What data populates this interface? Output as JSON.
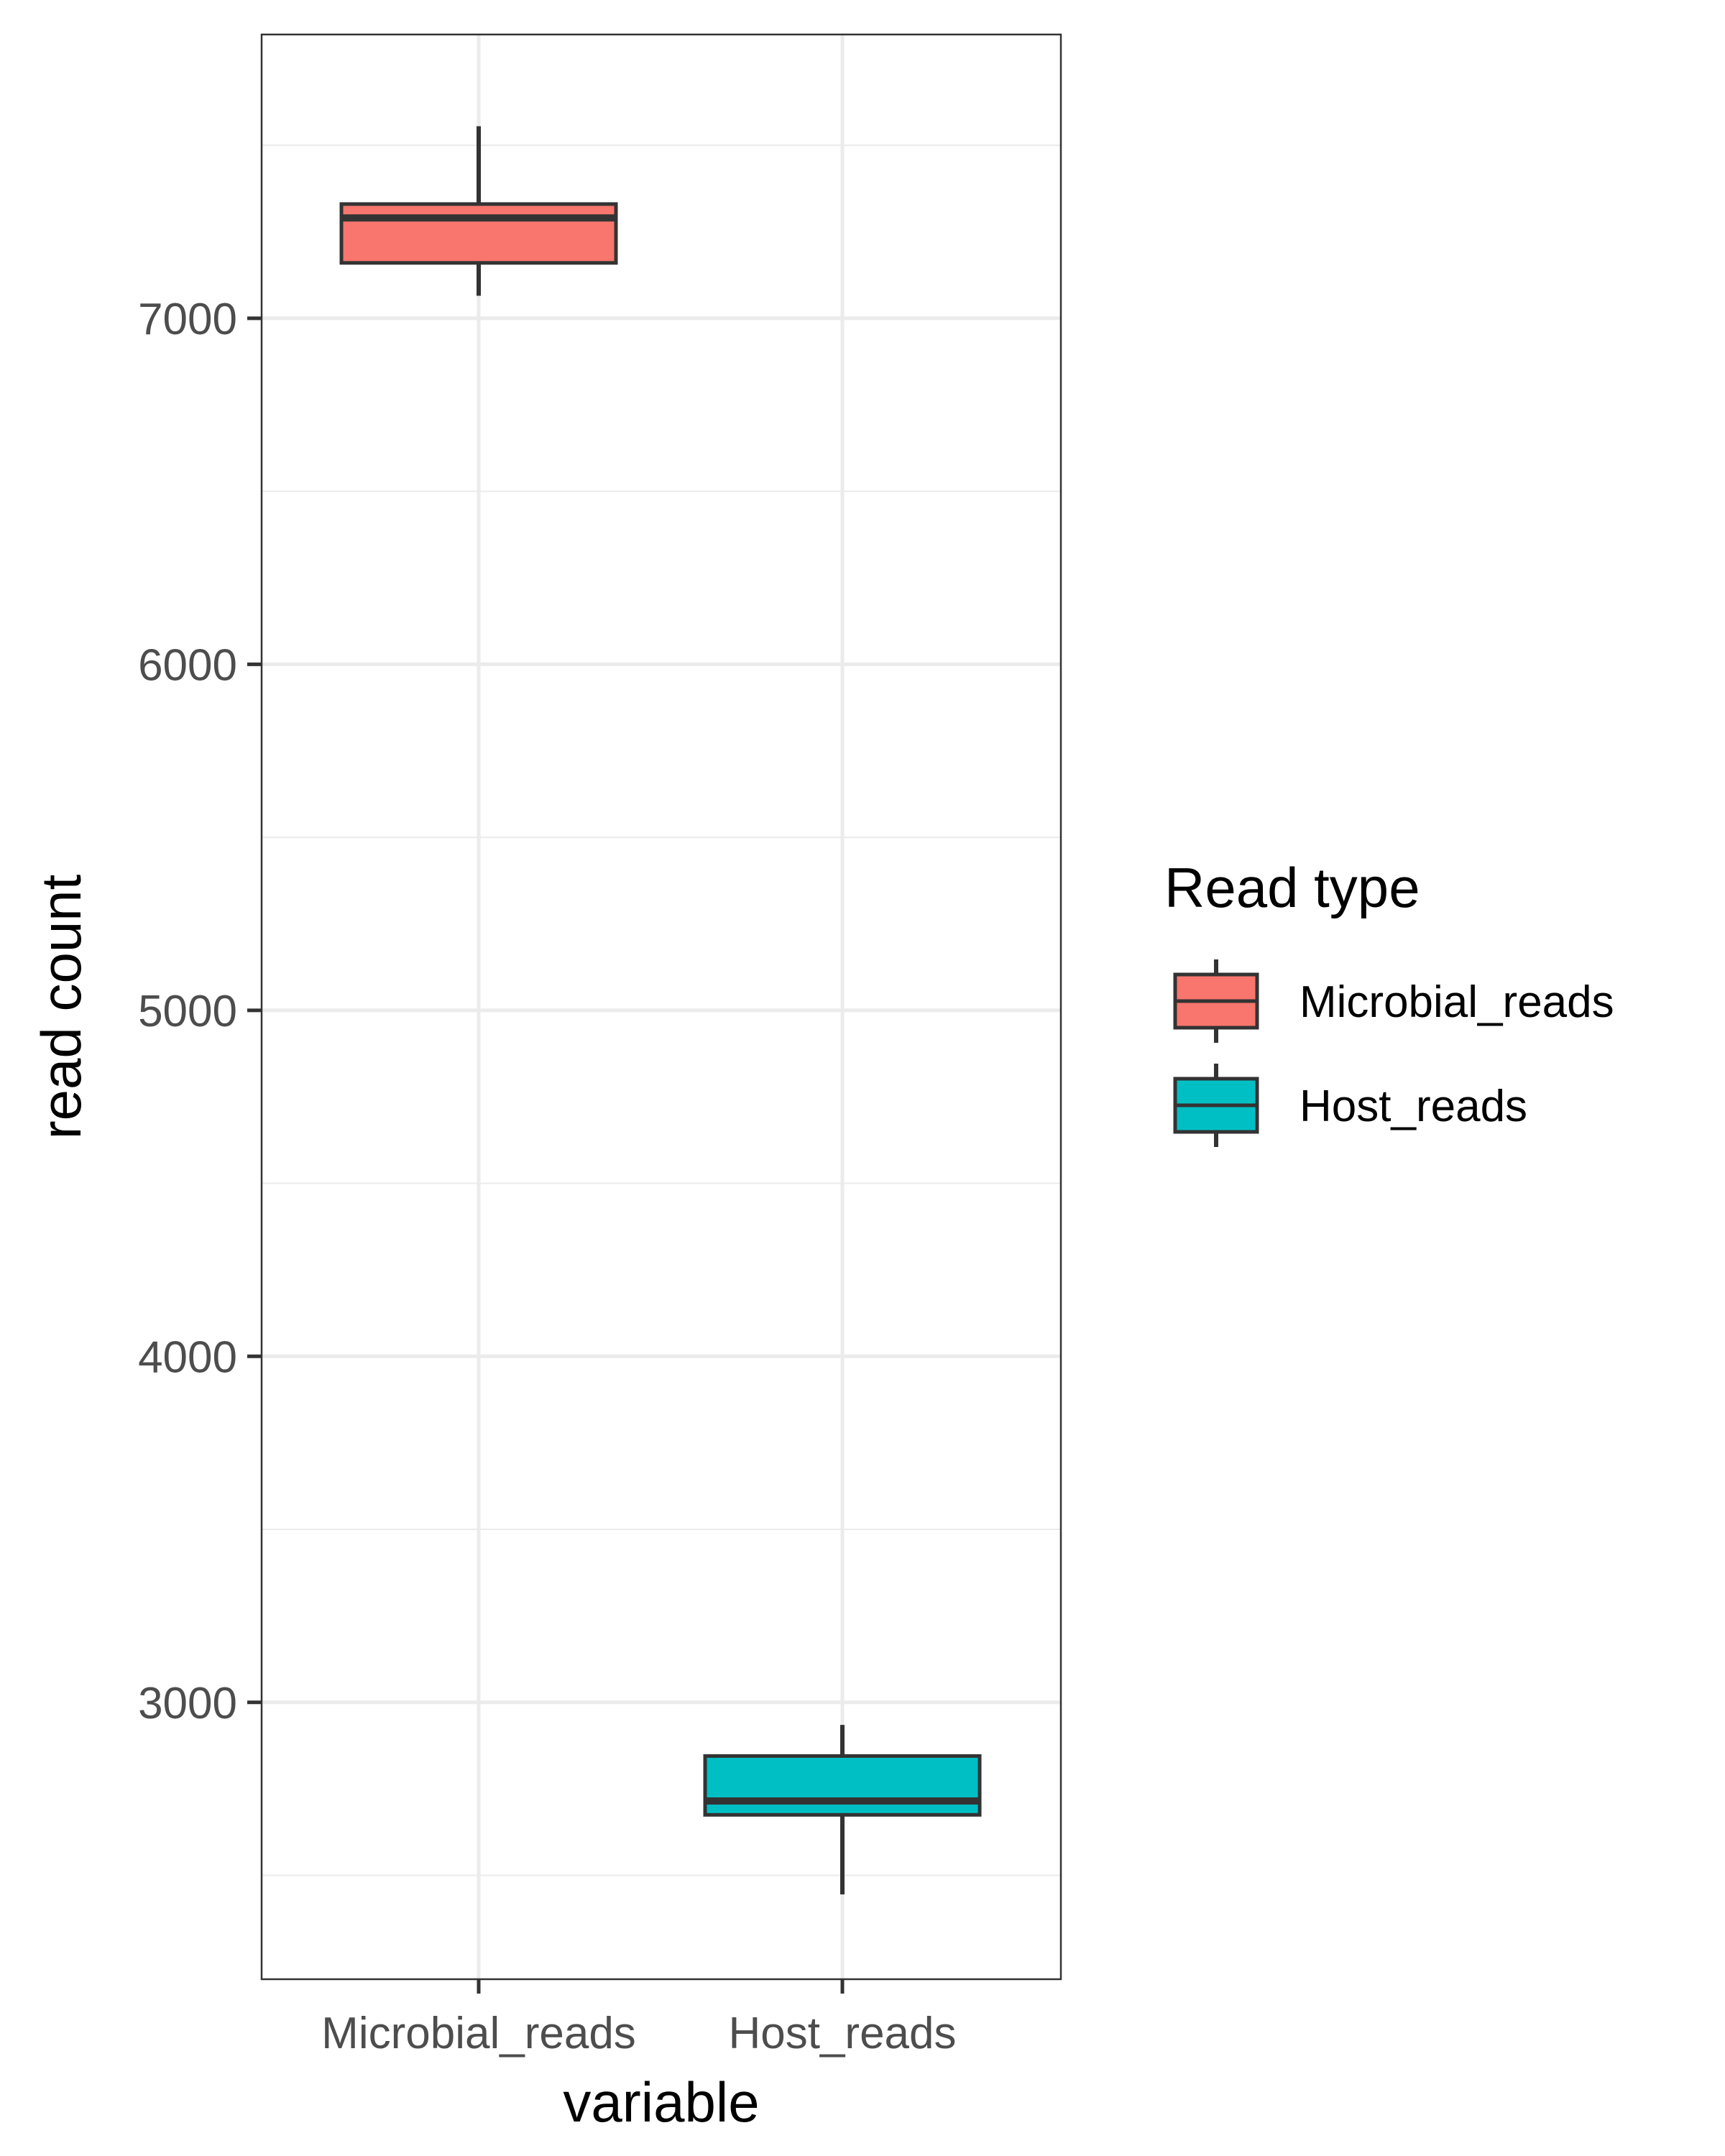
{
  "chart_data": {
    "type": "boxplot",
    "xlabel": "variable",
    "ylabel": "read count",
    "categories": [
      "Microbial_reads",
      "Host_reads"
    ],
    "ylim": [
      2200,
      7820
    ],
    "yticks": [
      3000,
      4000,
      5000,
      6000,
      7000
    ],
    "ytick_labels": [
      "3000",
      "4000",
      "5000",
      "6000",
      "7000"
    ],
    "y_minor_gridlines": [
      2500,
      3500,
      4500,
      5500,
      6500,
      7500
    ],
    "grid": true,
    "boxes": [
      {
        "category": "Microbial_reads",
        "whisker_low": 7065,
        "q1": 7160,
        "median": 7290,
        "q3": 7330,
        "whisker_high": 7555,
        "color": "#F8766D"
      },
      {
        "category": "Host_reads",
        "whisker_low": 2445,
        "q1": 2675,
        "median": 2715,
        "q3": 2845,
        "whisker_high": 2935,
        "color": "#00BFC4"
      }
    ],
    "legend": {
      "title": "Read type",
      "placement": "right",
      "entries": [
        {
          "label": "Microbial_reads",
          "color": "#F8766D"
        },
        {
          "label": "Host_reads",
          "color": "#00BFC4"
        }
      ]
    }
  }
}
